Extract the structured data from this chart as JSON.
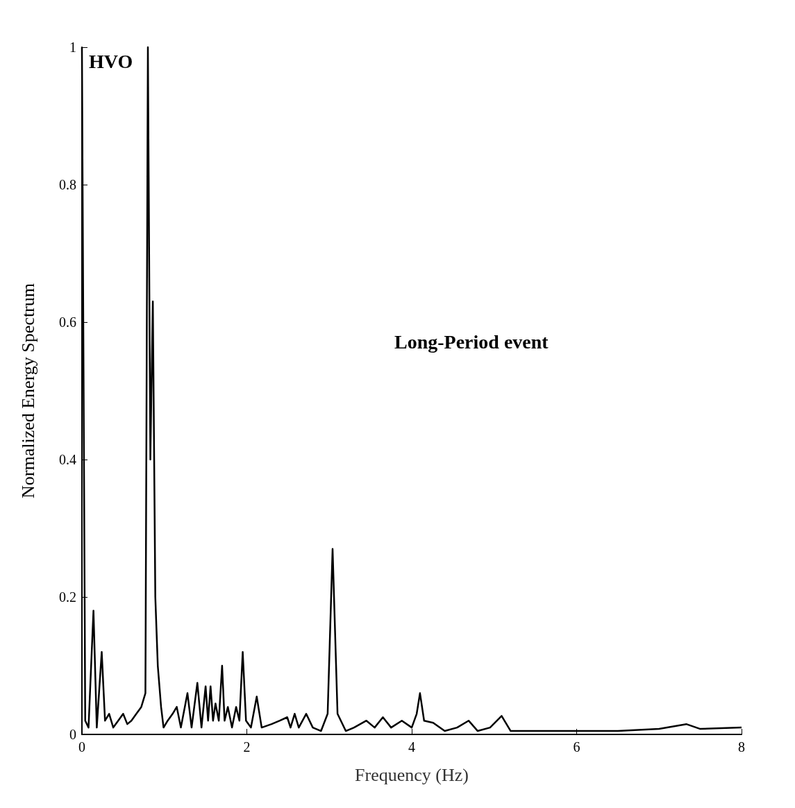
{
  "chart_data": {
    "type": "line",
    "xlabel": "Frequency (Hz)",
    "ylabel": "Normalized Energy Spectrum",
    "annotations": [
      "HVO",
      "Long-Period event"
    ],
    "xlim": [
      0,
      8
    ],
    "xticks": [
      0,
      2,
      4,
      6,
      8
    ],
    "ylim": [
      0,
      1
    ],
    "yticks": [
      0,
      0.2,
      0.4,
      0.6,
      0.8,
      1
    ],
    "grid": false,
    "marker": "none",
    "line_style": "solid",
    "series": [
      {
        "color": "#000000",
        "x": [
          0,
          0.04,
          0.08,
          0.14,
          0.18,
          0.24,
          0.28,
          0.33,
          0.38,
          0.44,
          0.5,
          0.55,
          0.6,
          0.66,
          0.72,
          0.77,
          0.8,
          0.83,
          0.86,
          0.89,
          0.92,
          0.96,
          0.99,
          1.04,
          1.1,
          1.15,
          1.2,
          1.28,
          1.33,
          1.4,
          1.45,
          1.5,
          1.53,
          1.56,
          1.59,
          1.62,
          1.66,
          1.7,
          1.73,
          1.77,
          1.82,
          1.87,
          1.91,
          1.95,
          1.99,
          2.05,
          2.12,
          2.18,
          2.3,
          2.4,
          2.49,
          2.53,
          2.58,
          2.63,
          2.72,
          2.8,
          2.9,
          2.98,
          3.04,
          3.1,
          3.2,
          3.3,
          3.45,
          3.55,
          3.65,
          3.75,
          3.88,
          4,
          4.06,
          4.1,
          4.15,
          4.26,
          4.4,
          4.55,
          4.69,
          4.8,
          4.95,
          5.09,
          5.2,
          5.5,
          6,
          6.5,
          7,
          7.33,
          7.5,
          8
        ],
        "values": [
          1,
          0.02,
          0.01,
          0.18,
          0.01,
          0.12,
          0.02,
          0.03,
          0.01,
          0.02,
          0.03,
          0.015,
          0.02,
          0.03,
          0.04,
          0.06,
          1,
          0.4,
          0.63,
          0.2,
          0.1,
          0.04,
          0.01,
          0.02,
          0.03,
          0.04,
          0.01,
          0.06,
          0.01,
          0.075,
          0.01,
          0.07,
          0.02,
          0.07,
          0.02,
          0.045,
          0.02,
          0.1,
          0.02,
          0.04,
          0.01,
          0.04,
          0.02,
          0.12,
          0.02,
          0.01,
          0.055,
          0.01,
          0.015,
          0.02,
          0.025,
          0.01,
          0.03,
          0.01,
          0.03,
          0.01,
          0.005,
          0.03,
          0.27,
          0.03,
          0.005,
          0.01,
          0.02,
          0.01,
          0.025,
          0.01,
          0.02,
          0.01,
          0.03,
          0.06,
          0.02,
          0.017,
          0.005,
          0.01,
          0.02,
          0.005,
          0.01,
          0.027,
          0.005,
          0.005,
          0.005,
          0.005,
          0.008,
          0.015,
          0.008,
          0.01
        ]
      }
    ]
  }
}
